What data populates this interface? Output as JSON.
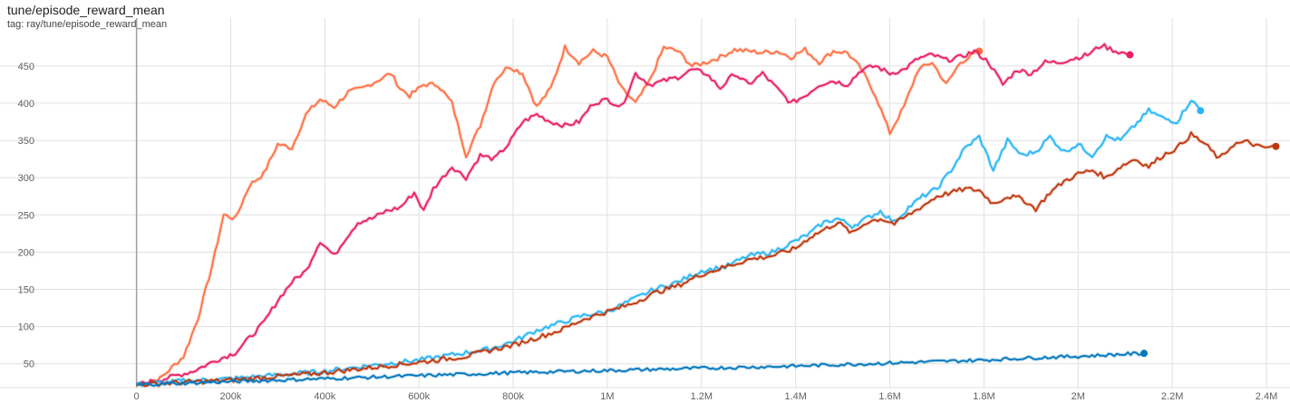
{
  "header": {
    "title": "tune/episode_reward_mean",
    "tag": "tag: ray/tune/episode_reward_mean"
  },
  "chart_data": {
    "type": "line",
    "title": "tune/episode_reward_mean",
    "xlabel": "",
    "ylabel": "",
    "xlim": [
      -290000,
      2450000
    ],
    "ylim": [
      18,
      490
    ],
    "grid": true,
    "x_ticks": [
      0,
      200000,
      400000,
      600000,
      800000,
      1000000,
      1200000,
      1400000,
      1600000,
      1800000,
      2000000,
      2200000,
      2400000
    ],
    "x_tick_labels": [
      "0",
      "200k",
      "400k",
      "600k",
      "800k",
      "1M",
      "1.2M",
      "1.4M",
      "1.6M",
      "1.8M",
      "2M",
      "2.2M",
      "2.4M"
    ],
    "y_ticks": [
      50,
      100,
      150,
      200,
      250,
      300,
      350,
      400,
      450
    ],
    "y_tick_labels": [
      "50",
      "100",
      "150",
      "200",
      "250",
      "300",
      "350",
      "400",
      "450"
    ],
    "series": [
      {
        "color": "#ff7043",
        "x": [
          0,
          50000,
          100000,
          130000,
          160000,
          185000,
          210000,
          240000,
          270000,
          300000,
          330000,
          360000,
          390000,
          420000,
          450000,
          480000,
          510000,
          540000,
          560000,
          580000,
          610000,
          640000,
          670000,
          700000,
          730000,
          760000,
          790000,
          820000,
          850000,
          880000,
          910000,
          940000,
          970000,
          1000000,
          1030000,
          1060000,
          1090000,
          1120000,
          1150000,
          1180000,
          1210000,
          1240000,
          1270000,
          1300000,
          1330000,
          1360000,
          1390000,
          1420000,
          1450000,
          1480000,
          1510000,
          1540000,
          1570000,
          1600000,
          1630000,
          1660000,
          1690000,
          1720000,
          1750000,
          1790000
        ],
        "y": [
          22,
          30,
          60,
          110,
          180,
          250,
          245,
          290,
          305,
          345,
          340,
          385,
          405,
          395,
          415,
          420,
          430,
          440,
          420,
          410,
          425,
          425,
          400,
          330,
          370,
          430,
          450,
          440,
          395,
          420,
          475,
          455,
          470,
          462,
          420,
          400,
          430,
          475,
          470,
          450,
          455,
          462,
          472,
          470,
          468,
          470,
          462,
          472,
          455,
          470,
          468,
          445,
          410,
          360,
          395,
          445,
          455,
          425,
          455,
          470
        ],
        "end_x": 1790000,
        "end_y": 470
      },
      {
        "color": "#e91e63",
        "x": [
          0,
          60000,
          120000,
          170000,
          210000,
          240000,
          270000,
          300000,
          330000,
          360000,
          390000,
          420000,
          440000,
          470000,
          500000,
          530000,
          560000,
          590000,
          610000,
          630000,
          650000,
          670000,
          700000,
          730000,
          760000,
          790000,
          820000,
          850000,
          880000,
          910000,
          940000,
          970000,
          1000000,
          1030000,
          1060000,
          1090000,
          1120000,
          1150000,
          1180000,
          1210000,
          1240000,
          1270000,
          1300000,
          1330000,
          1360000,
          1390000,
          1420000,
          1450000,
          1480000,
          1510000,
          1540000,
          1570000,
          1600000,
          1630000,
          1660000,
          1690000,
          1720000,
          1750000,
          1780000,
          1810000,
          1840000,
          1870000,
          1900000,
          1930000,
          1960000,
          1990000,
          2020000,
          2050000,
          2080000,
          2110000
        ],
        "y": [
          22,
          30,
          40,
          55,
          65,
          85,
          105,
          135,
          160,
          175,
          215,
          195,
          215,
          240,
          245,
          255,
          260,
          280,
          255,
          285,
          300,
          315,
          300,
          330,
          325,
          345,
          375,
          385,
          375,
          370,
          375,
          400,
          405,
          395,
          440,
          425,
          430,
          435,
          445,
          440,
          420,
          440,
          425,
          440,
          420,
          400,
          410,
          425,
          430,
          425,
          445,
          450,
          440,
          445,
          460,
          465,
          458,
          462,
          470,
          455,
          425,
          445,
          440,
          455,
          455,
          460,
          465,
          478,
          470,
          465
        ],
        "end_x": 2110000,
        "end_y": 465
      },
      {
        "color": "#29b6f6",
        "x": [
          0,
          100000,
          200000,
          300000,
          400000,
          500000,
          600000,
          700000,
          750000,
          800000,
          850000,
          900000,
          950000,
          1000000,
          1050000,
          1100000,
          1150000,
          1200000,
          1250000,
          1300000,
          1350000,
          1400000,
          1430000,
          1460000,
          1490000,
          1520000,
          1550000,
          1580000,
          1610000,
          1640000,
          1670000,
          1700000,
          1730000,
          1760000,
          1790000,
          1820000,
          1850000,
          1880000,
          1910000,
          1940000,
          1970000,
          2000000,
          2030000,
          2060000,
          2090000,
          2120000,
          2150000,
          2180000,
          2210000,
          2240000,
          2260000
        ],
        "y": [
          22,
          27,
          30,
          35,
          40,
          48,
          55,
          65,
          70,
          80,
          95,
          105,
          115,
          120,
          135,
          150,
          160,
          175,
          180,
          195,
          200,
          215,
          225,
          240,
          245,
          235,
          245,
          255,
          240,
          260,
          275,
          285,
          310,
          340,
          355,
          310,
          350,
          330,
          335,
          355,
          335,
          345,
          330,
          355,
          350,
          370,
          390,
          380,
          375,
          405,
          390
        ],
        "end_x": 2260000,
        "end_y": 390
      },
      {
        "color": "#bf360c",
        "x": [
          0,
          100000,
          200000,
          300000,
          400000,
          500000,
          600000,
          700000,
          750000,
          800000,
          850000,
          900000,
          950000,
          1000000,
          1050000,
          1100000,
          1150000,
          1200000,
          1250000,
          1300000,
          1350000,
          1400000,
          1430000,
          1460000,
          1490000,
          1520000,
          1550000,
          1580000,
          1610000,
          1640000,
          1670000,
          1700000,
          1730000,
          1760000,
          1790000,
          1820000,
          1850000,
          1880000,
          1910000,
          1940000,
          1970000,
          2000000,
          2030000,
          2060000,
          2090000,
          2120000,
          2150000,
          2180000,
          2210000,
          2240000,
          2270000,
          2300000,
          2330000,
          2360000,
          2390000,
          2420000
        ],
        "y": [
          22,
          25,
          28,
          33,
          38,
          45,
          52,
          60,
          68,
          75,
          85,
          95,
          110,
          120,
          130,
          145,
          155,
          170,
          180,
          190,
          195,
          205,
          220,
          230,
          240,
          225,
          240,
          245,
          238,
          250,
          262,
          275,
          280,
          285,
          283,
          265,
          275,
          272,
          258,
          280,
          295,
          305,
          310,
          300,
          315,
          325,
          315,
          330,
          340,
          358,
          345,
          325,
          345,
          348,
          340,
          342
        ],
        "end_x": 2420000,
        "end_y": 342
      },
      {
        "color": "#0277bd",
        "x": [
          0,
          200000,
          400000,
          600000,
          800000,
          1000000,
          1200000,
          1400000,
          1600000,
          1800000,
          1900000,
          2000000,
          2100000,
          2140000
        ],
        "y": [
          22,
          26,
          30,
          34,
          38,
          41,
          44,
          47,
          51,
          55,
          58,
          60,
          63,
          64
        ],
        "end_x": 2140000,
        "end_y": 64
      }
    ]
  }
}
